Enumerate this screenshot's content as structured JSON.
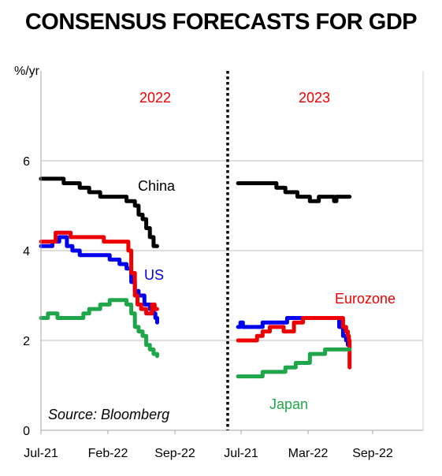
{
  "title": "CONSENSUS FORECASTS FOR GDP",
  "source": "Source: Bloomberg",
  "colors": {
    "China": "#000000",
    "US": "#0000ee",
    "Eurozone": "#ee0000",
    "Japan": "#1fa64a",
    "grid": "#bfbfbf",
    "divider": "#000000"
  },
  "chart_data": [
    {
      "type": "line",
      "panel_label": "2022",
      "ylabel": "%/yr",
      "ylim": [
        0,
        8
      ],
      "yticks": [
        0,
        2,
        4,
        6
      ],
      "xlim": [
        "2021-07-01",
        "2022-10-01"
      ],
      "xticks": [
        "Jul-21",
        "Feb-22",
        "Sep-22"
      ],
      "grid": true,
      "series": [
        {
          "name": "China",
          "label_text": "China",
          "points": [
            [
              "2021-07-01",
              5.6
            ],
            [
              "2021-08-15",
              5.6
            ],
            [
              "2021-09-01",
              5.5
            ],
            [
              "2021-10-15",
              5.4
            ],
            [
              "2021-11-10",
              5.3
            ],
            [
              "2021-12-10",
              5.2
            ],
            [
              "2022-01-20",
              5.2
            ],
            [
              "2022-02-20",
              5.1
            ],
            [
              "2022-03-15",
              5.0
            ],
            [
              "2022-03-25",
              4.8
            ],
            [
              "2022-04-05",
              4.7
            ],
            [
              "2022-04-15",
              4.5
            ],
            [
              "2022-04-25",
              4.3
            ],
            [
              "2022-05-05",
              4.1
            ],
            [
              "2022-05-15",
              4.1
            ]
          ]
        },
        {
          "name": "US",
          "label_text": "US",
          "points": [
            [
              "2021-07-01",
              4.1
            ],
            [
              "2021-07-20",
              4.1
            ],
            [
              "2021-08-01",
              4.2
            ],
            [
              "2021-08-20",
              4.3
            ],
            [
              "2021-09-10",
              4.1
            ],
            [
              "2021-09-25",
              4.0
            ],
            [
              "2021-10-15",
              3.9
            ],
            [
              "2021-12-15",
              3.9
            ],
            [
              "2022-01-05",
              3.8
            ],
            [
              "2022-02-01",
              3.7
            ],
            [
              "2022-02-20",
              3.6
            ],
            [
              "2022-03-05",
              3.3
            ],
            [
              "2022-03-15",
              3.1
            ],
            [
              "2022-03-25",
              3.0
            ],
            [
              "2022-04-10",
              2.8
            ],
            [
              "2022-04-25",
              2.7
            ],
            [
              "2022-05-05",
              2.6
            ],
            [
              "2022-05-10",
              2.5
            ],
            [
              "2022-05-15",
              2.4
            ]
          ]
        },
        {
          "name": "Eurozone",
          "label_text": "Eurozone",
          "points": [
            [
              "2021-07-01",
              4.2
            ],
            [
              "2021-08-01",
              4.2
            ],
            [
              "2021-08-10",
              4.4
            ],
            [
              "2021-09-10",
              4.4
            ],
            [
              "2021-09-20",
              4.3
            ],
            [
              "2021-12-10",
              4.3
            ],
            [
              "2021-12-20",
              4.2
            ],
            [
              "2022-02-15",
              4.2
            ],
            [
              "2022-02-25",
              4.0
            ],
            [
              "2022-03-05",
              3.5
            ],
            [
              "2022-03-15",
              3.0
            ],
            [
              "2022-03-22",
              2.8
            ],
            [
              "2022-04-01",
              2.7
            ],
            [
              "2022-04-15",
              2.6
            ],
            [
              "2022-04-25",
              2.6
            ],
            [
              "2022-05-01",
              2.8
            ],
            [
              "2022-05-08",
              2.7
            ],
            [
              "2022-05-15",
              2.7
            ]
          ]
        },
        {
          "name": "Japan",
          "label_text": "",
          "points": [
            [
              "2021-07-01",
              2.5
            ],
            [
              "2021-07-20",
              2.6
            ],
            [
              "2021-08-15",
              2.5
            ],
            [
              "2021-10-10",
              2.5
            ],
            [
              "2021-10-25",
              2.6
            ],
            [
              "2021-11-10",
              2.7
            ],
            [
              "2021-12-10",
              2.8
            ],
            [
              "2022-01-05",
              2.9
            ],
            [
              "2022-02-05",
              2.9
            ],
            [
              "2022-02-20",
              2.8
            ],
            [
              "2022-03-05",
              2.6
            ],
            [
              "2022-03-15",
              2.3
            ],
            [
              "2022-03-25",
              2.2
            ],
            [
              "2022-04-05",
              2.1
            ],
            [
              "2022-04-15",
              1.9
            ],
            [
              "2022-04-25",
              1.8
            ],
            [
              "2022-05-05",
              1.7
            ],
            [
              "2022-05-15",
              1.65
            ]
          ]
        }
      ]
    },
    {
      "type": "line",
      "panel_label": "2023",
      "ylim": [
        0,
        8
      ],
      "xlim": [
        "2021-06-01",
        "2022-11-01"
      ],
      "xticks": [
        "Jul-21",
        "Mar-22",
        "Sep-22"
      ],
      "grid": true,
      "series": [
        {
          "name": "China",
          "label_text": "",
          "points": [
            [
              "2021-07-01",
              5.5
            ],
            [
              "2021-10-01",
              5.5
            ],
            [
              "2021-10-20",
              5.4
            ],
            [
              "2021-11-15",
              5.3
            ],
            [
              "2021-12-10",
              5.3
            ],
            [
              "2021-12-20",
              5.2
            ],
            [
              "2022-01-20",
              5.2
            ],
            [
              "2022-01-25",
              5.1
            ],
            [
              "2022-02-10",
              5.1
            ],
            [
              "2022-02-20",
              5.2
            ],
            [
              "2022-04-01",
              5.2
            ],
            [
              "2022-04-05",
              5.1
            ],
            [
              "2022-04-12",
              5.2
            ],
            [
              "2022-05-20",
              5.2
            ]
          ]
        },
        {
          "name": "US",
          "label_text": "",
          "points": [
            [
              "2021-07-01",
              2.3
            ],
            [
              "2021-07-08",
              2.4
            ],
            [
              "2021-07-15",
              2.3
            ],
            [
              "2021-09-01",
              2.3
            ],
            [
              "2021-09-10",
              2.4
            ],
            [
              "2021-11-10",
              2.4
            ],
            [
              "2021-11-20",
              2.5
            ],
            [
              "2022-04-10",
              2.5
            ],
            [
              "2022-04-20",
              2.3
            ],
            [
              "2022-05-01",
              2.1
            ],
            [
              "2022-05-10",
              2.0
            ],
            [
              "2022-05-15",
              1.9
            ]
          ]
        },
        {
          "name": "Eurozone",
          "label_text": "Eurozone",
          "points": [
            [
              "2021-07-01",
              2.0
            ],
            [
              "2021-08-15",
              2.0
            ],
            [
              "2021-08-25",
              2.1
            ],
            [
              "2021-09-10",
              2.2
            ],
            [
              "2021-09-20",
              2.2
            ],
            [
              "2021-10-01",
              2.3
            ],
            [
              "2021-11-01",
              2.3
            ],
            [
              "2021-11-10",
              2.2
            ],
            [
              "2021-12-01",
              2.2
            ],
            [
              "2021-12-10",
              2.4
            ],
            [
              "2022-01-05",
              2.5
            ],
            [
              "2022-04-20",
              2.5
            ],
            [
              "2022-05-01",
              2.3
            ],
            [
              "2022-05-10",
              2.2
            ],
            [
              "2022-05-15",
              2.1
            ],
            [
              "2022-05-18",
              2.0
            ],
            [
              "2022-05-20",
              1.4
            ]
          ]
        },
        {
          "name": "Japan",
          "label_text": "Japan",
          "points": [
            [
              "2021-07-01",
              1.2
            ],
            [
              "2021-09-01",
              1.2
            ],
            [
              "2021-09-10",
              1.3
            ],
            [
              "2021-11-01",
              1.3
            ],
            [
              "2021-11-15",
              1.4
            ],
            [
              "2021-12-05",
              1.4
            ],
            [
              "2021-12-15",
              1.5
            ],
            [
              "2022-01-10",
              1.5
            ],
            [
              "2022-01-25",
              1.7
            ],
            [
              "2022-03-01",
              1.7
            ],
            [
              "2022-03-10",
              1.8
            ],
            [
              "2022-05-20",
              1.8
            ]
          ]
        }
      ]
    }
  ]
}
